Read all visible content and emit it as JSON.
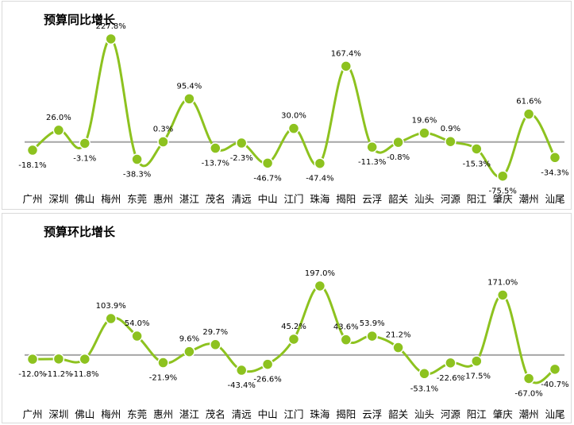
{
  "colors": {
    "line": "#8dc21f",
    "marker": "#8dc21f",
    "baseline": "#a6a6a6",
    "text": "#000000"
  },
  "chart_data": [
    {
      "type": "line",
      "title": "预算同比增长",
      "categories": [
        "广州",
        "深圳",
        "佛山",
        "梅州",
        "东莞",
        "惠州",
        "湛江",
        "茂名",
        "清远",
        "中山",
        "江门",
        "珠海",
        "揭阳",
        "云浮",
        "韶关",
        "汕头",
        "河源",
        "阳江",
        "肇庆",
        "潮州",
        "汕尾"
      ],
      "values": [
        -18.1,
        26.0,
        -3.1,
        227.8,
        -38.3,
        0.3,
        95.4,
        -13.7,
        -2.3,
        -46.7,
        30.0,
        -47.4,
        167.4,
        -11.3,
        -0.8,
        19.6,
        0.9,
        -15.3,
        -75.5,
        61.6,
        -34.3
      ],
      "labels": [
        "-18.1%",
        "26.0%",
        "-3.1%",
        "227.8%",
        "-38.3%",
        "0.3%",
        "95.4%",
        "-13.7%",
        "-2.3%",
        "-46.7%",
        "30.0%",
        "-47.4%",
        "167.4%",
        "-11.3%",
        "-0.8%",
        "19.6%",
        "0.9%",
        "-15.3%",
        "-75.5%",
        "61.6%",
        "-34.3%"
      ],
      "unit": "%",
      "ylim": [
        -90,
        240
      ],
      "grid": false,
      "legend": "none",
      "smooth": true
    },
    {
      "type": "line",
      "title": "预算环比增长",
      "categories": [
        "广州",
        "深圳",
        "佛山",
        "梅州",
        "东莞",
        "惠州",
        "湛江",
        "茂名",
        "清远",
        "中山",
        "江门",
        "珠海",
        "揭阳",
        "云浮",
        "韶关",
        "汕头",
        "河源",
        "阳江",
        "肇庆",
        "潮州",
        "汕尾"
      ],
      "values": [
        -12.0,
        -11.2,
        -11.8,
        103.9,
        54.0,
        -21.9,
        9.6,
        29.7,
        -43.4,
        -26.6,
        45.2,
        197.0,
        43.6,
        53.9,
        21.2,
        -53.1,
        -22.6,
        -17.5,
        171.0,
        -67.0,
        -40.7
      ],
      "labels": [
        "-12.0%",
        "-11.2%",
        "-11.8%",
        "103.9%",
        "54.0%",
        "-21.9%",
        "9.6%",
        "29.7%",
        "-43.4%",
        "-26.6%",
        "45.2%",
        "197.0%",
        "43.6%",
        "53.9%",
        "21.2%",
        "-53.1%",
        "-22.6%",
        "-17.5%",
        "171.0%",
        "-67.0%",
        "-40.7%"
      ],
      "unit": "%",
      "ylim": [
        -100,
        240
      ],
      "grid": false,
      "legend": "none",
      "smooth": true
    }
  ]
}
